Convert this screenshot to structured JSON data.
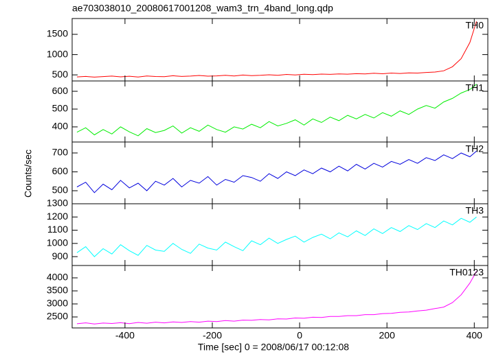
{
  "chart_data": {
    "type": "line",
    "title": "ae703038010_20080617001208_wam3_trn_4band_long.qdp",
    "xlabel": "Time [sec] 0 = 2008/06/17 00:12:08",
    "ylabel": "Counts/sec",
    "xlim": [
      -521,
      431
    ],
    "xticks": [
      -400,
      -200,
      0,
      200,
      400
    ],
    "x": [
      -510,
      -490,
      -470,
      -450,
      -430,
      -410,
      -390,
      -370,
      -350,
      -330,
      -310,
      -290,
      -270,
      -250,
      -230,
      -210,
      -190,
      -170,
      -150,
      -130,
      -110,
      -90,
      -70,
      -50,
      -30,
      -10,
      10,
      30,
      50,
      70,
      90,
      110,
      130,
      150,
      170,
      190,
      210,
      230,
      250,
      270,
      290,
      310,
      330,
      350,
      370,
      390,
      405
    ],
    "series": [
      {
        "name": "TH0",
        "color": "#ff0000",
        "ylim": [
          350,
          1890
        ],
        "yticks": [
          500,
          1000,
          1500
        ],
        "values": [
          450,
          462,
          445,
          458,
          470,
          452,
          466,
          448,
          473,
          460,
          455,
          478,
          462,
          470,
          485,
          468,
          476,
          490,
          472,
          495,
          480,
          488,
          502,
          490,
          510,
          498,
          515,
          505,
          520,
          512,
          525,
          518,
          530,
          522,
          540,
          528,
          545,
          535,
          550,
          545,
          560,
          570,
          600,
          700,
          900,
          1300,
          1820
        ]
      },
      {
        "name": "TH1",
        "color": "#00ee00",
        "ylim": [
          315,
          658
        ],
        "yticks": [
          400,
          500,
          600
        ],
        "values": [
          370,
          395,
          355,
          385,
          360,
          400,
          372,
          350,
          390,
          368,
          380,
          405,
          365,
          395,
          375,
          410,
          385,
          370,
          400,
          388,
          415,
          395,
          430,
          405,
          420,
          440,
          410,
          445,
          425,
          455,
          435,
          465,
          445,
          470,
          450,
          480,
          460,
          490,
          470,
          500,
          520,
          505,
          540,
          560,
          590,
          610,
          640
        ]
      },
      {
        "name": "TH2",
        "color": "#0000dd",
        "ylim": [
          431,
          758
        ],
        "yticks": [
          500,
          600,
          700
        ],
        "values": [
          520,
          545,
          490,
          535,
          505,
          555,
          515,
          540,
          500,
          550,
          530,
          565,
          520,
          555,
          540,
          575,
          530,
          560,
          545,
          580,
          570,
          550,
          590,
          565,
          600,
          580,
          610,
          590,
          620,
          600,
          630,
          605,
          640,
          615,
          645,
          625,
          655,
          640,
          665,
          645,
          675,
          660,
          690,
          670,
          700,
          680,
          710
        ]
      },
      {
        "name": "TH3",
        "color": "#00ffff",
        "ylim": [
          833,
          1300
        ],
        "yticks": [
          900,
          1000,
          1100,
          1200,
          1300
        ],
        "values": [
          930,
          975,
          900,
          960,
          920,
          990,
          945,
          910,
          985,
          950,
          940,
          1000,
          955,
          925,
          995,
          965,
          950,
          1010,
          975,
          945,
          1020,
          990,
          1040,
          1000,
          1030,
          1055,
          1010,
          1045,
          1070,
          1035,
          1080,
          1050,
          1095,
          1060,
          1110,
          1075,
          1120,
          1090,
          1135,
          1105,
          1150,
          1120,
          1170,
          1140,
          1190,
          1160,
          1200
        ]
      },
      {
        "name": "TH0123",
        "color": "#ff00ff",
        "ylim": [
          2079,
          4474
        ],
        "yticks": [
          2500,
          3000,
          3500,
          4000
        ],
        "values": [
          2240,
          2275,
          2230,
          2265,
          2250,
          2280,
          2245,
          2290,
          2260,
          2300,
          2275,
          2310,
          2290,
          2325,
          2300,
          2340,
          2320,
          2360,
          2340,
          2380,
          2370,
          2400,
          2390,
          2430,
          2420,
          2460,
          2450,
          2490,
          2480,
          2520,
          2520,
          2550,
          2550,
          2590,
          2590,
          2630,
          2640,
          2680,
          2690,
          2730,
          2760,
          2820,
          2880,
          3050,
          3350,
          3800,
          4250
        ]
      }
    ]
  }
}
